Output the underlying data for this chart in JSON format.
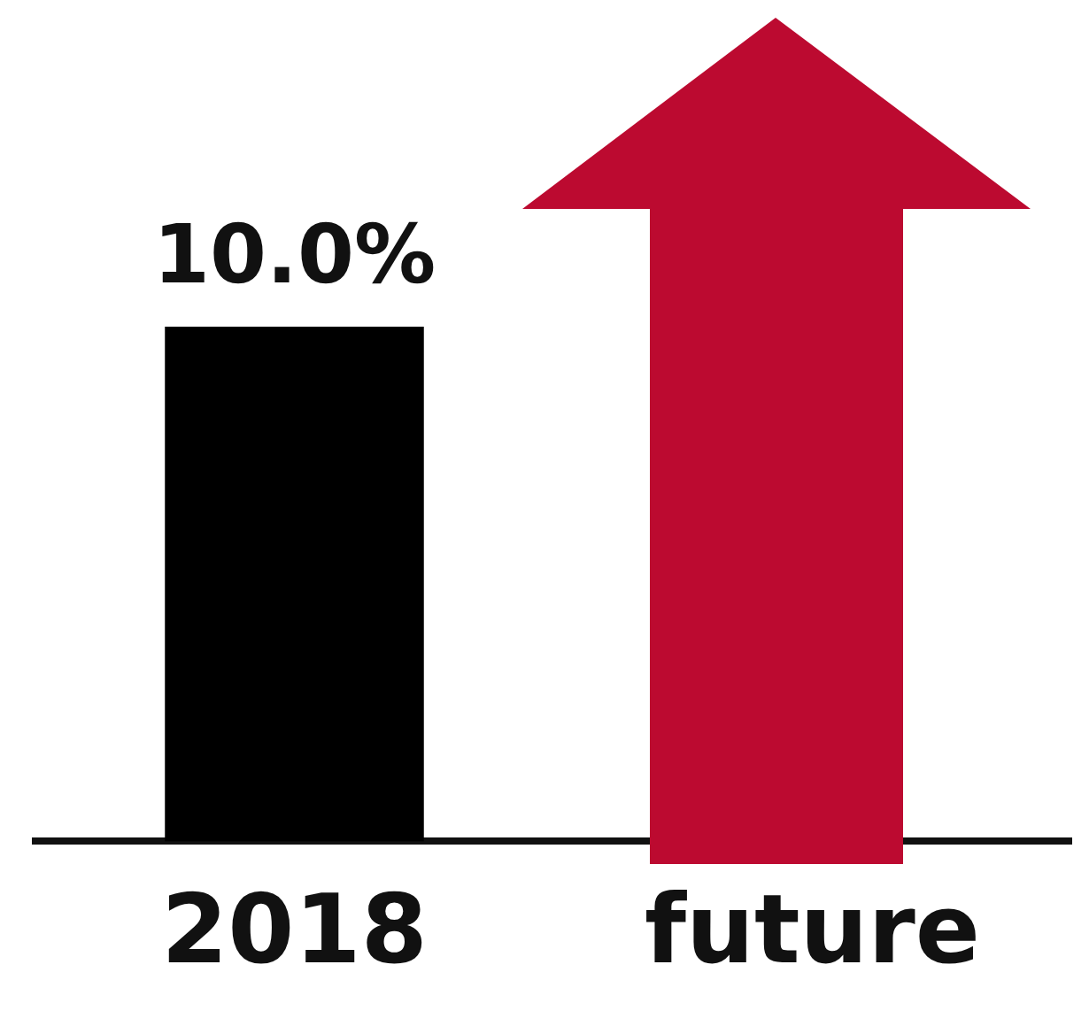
{
  "chart_data": {
    "type": "bar",
    "categories": [
      "2018",
      "future"
    ],
    "values": [
      10.0,
      null
    ],
    "value_labels": [
      "10.0%",
      null
    ],
    "color": "#000000",
    "grid": false,
    "legend": false,
    "tick_labels": "x"
  }
}
